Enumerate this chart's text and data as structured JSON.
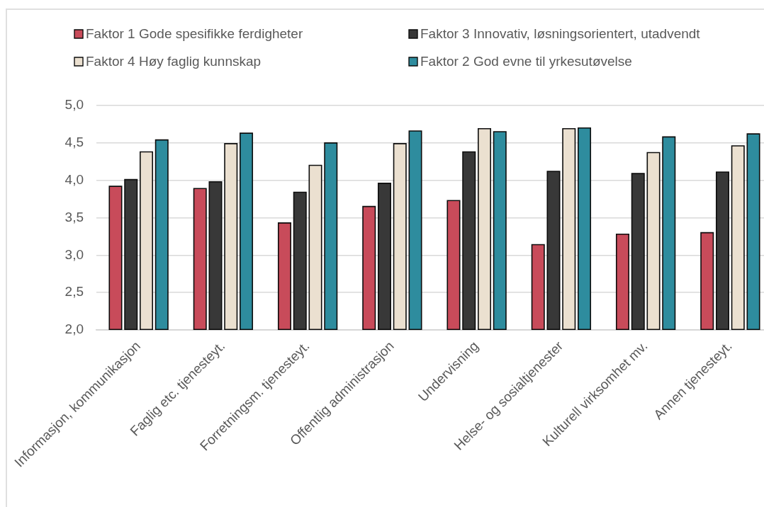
{
  "chart_data": {
    "type": "bar",
    "categories": [
      "Informasjon, kommunikasjon",
      "Faglig etc. tjenesteyt.",
      "Forretningsm. tjenesteyt.",
      "Offentlig administrasjon",
      "Undervisning",
      "Helse- og sosialtjenester",
      "Kulturell virksomhet mv.",
      "Annen tjenesteyt."
    ],
    "series": [
      {
        "name": "Faktor 1 Gode spesifikke ferdigheter",
        "color": "#c84b5a",
        "values": [
          3.92,
          3.89,
          3.43,
          3.65,
          3.73,
          3.14,
          3.28,
          3.3
        ]
      },
      {
        "name": "Faktor 3 Innovativ, løsningsorientert, utadvendt",
        "color": "#383838",
        "values": [
          4.01,
          3.98,
          3.84,
          3.96,
          4.38,
          4.12,
          4.09,
          4.11
        ]
      },
      {
        "name": "Faktor 4 Høy faglig kunnskap",
        "color": "#ebe0d0",
        "values": [
          4.38,
          4.49,
          4.2,
          4.49,
          4.69,
          4.69,
          4.37,
          4.46
        ]
      },
      {
        "name": "Faktor 2 God evne til yrkesutøvelse",
        "color": "#2e8c9e",
        "values": [
          4.54,
          4.63,
          4.5,
          4.66,
          4.65,
          4.7,
          4.58,
          4.62
        ]
      }
    ],
    "ylim": [
      2,
      5
    ],
    "yticks": [
      {
        "value": 2,
        "label": "2,0"
      },
      {
        "value": 2.5,
        "label": "2,5"
      },
      {
        "value": 3,
        "label": "3,0"
      },
      {
        "value": 3.5,
        "label": "3,5"
      },
      {
        "value": 4,
        "label": "4,0"
      },
      {
        "value": 4.5,
        "label": "4,5"
      },
      {
        "value": 5,
        "label": "5,0"
      }
    ],
    "grid": "y",
    "legend": "top"
  }
}
